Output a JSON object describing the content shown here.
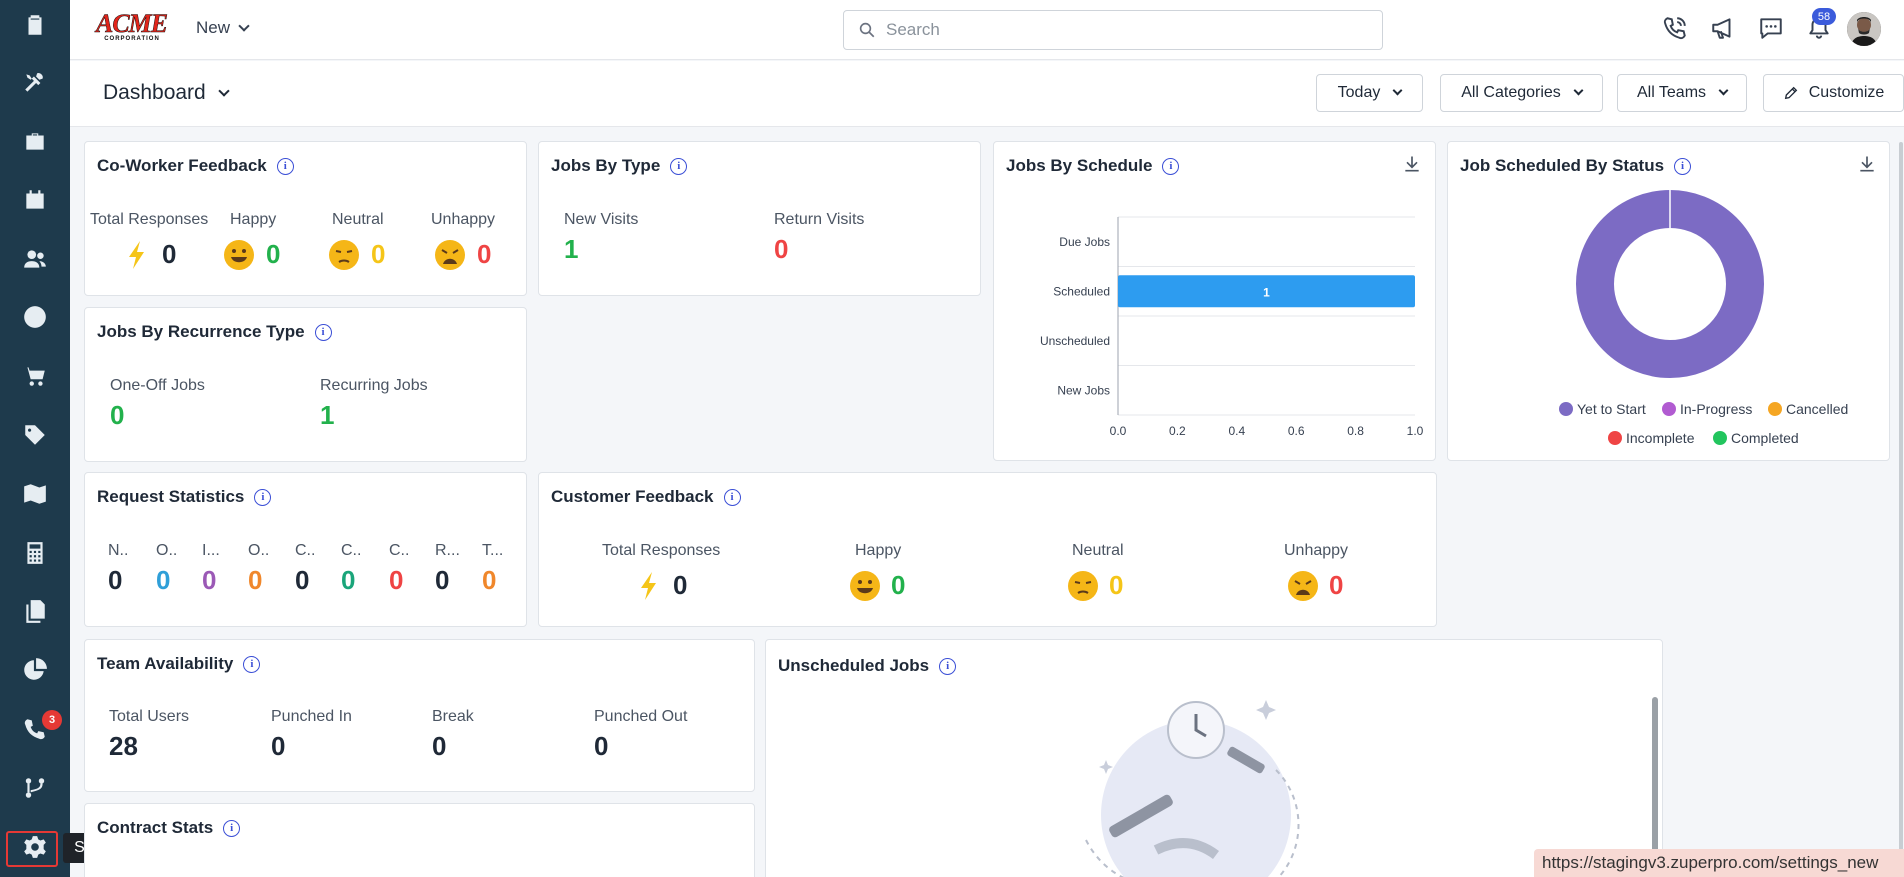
{
  "app": {
    "logo_text": "ACME",
    "logo_sub": "CORPORATION",
    "new_label": "New"
  },
  "search": {
    "placeholder": "Search"
  },
  "notifications": {
    "count": "58"
  },
  "sidebar": {
    "calls_badge": "3",
    "tooltip": "Settings",
    "items": [
      "clipboard-icon",
      "tools-icon",
      "briefcase-icon",
      "calendar-icon",
      "users-icon",
      "clock-icon",
      "cart-icon",
      "tag-icon",
      "map-icon",
      "calculator-icon",
      "documents-icon",
      "pie-chart-icon",
      "calls-icon",
      "flow-icon",
      "gear-icon"
    ]
  },
  "header": {
    "title": "Dashboard",
    "filter_date": "Today",
    "filter_category": "All Categories",
    "filter_team": "All Teams",
    "customize": "Customize"
  },
  "coworker_feedback": {
    "title": "Co-Worker Feedback",
    "total_label": "Total Responses",
    "total": "0",
    "happy_label": "Happy",
    "happy": "0",
    "neutral_label": "Neutral",
    "neutral": "0",
    "unhappy_label": "Unhappy",
    "unhappy": "0"
  },
  "jobs_by_type": {
    "title": "Jobs By Type",
    "new_label": "New Visits",
    "new": "1",
    "return_label": "Return Visits",
    "return": "0"
  },
  "jobs_by_recurrence": {
    "title": "Jobs By Recurrence Type",
    "oneoff_label": "One-Off Jobs",
    "oneoff": "0",
    "recurring_label": "Recurring Jobs",
    "recurring": "1"
  },
  "request_stats": {
    "title": "Request Statistics",
    "items": [
      {
        "label": "N..",
        "value": "0"
      },
      {
        "label": "O..",
        "value": "0"
      },
      {
        "label": "I...",
        "value": "0"
      },
      {
        "label": "O..",
        "value": "0"
      },
      {
        "label": "C..",
        "value": "0"
      },
      {
        "label": "C..",
        "value": "0"
      },
      {
        "label": "C..",
        "value": "0"
      },
      {
        "label": "R...",
        "value": "0"
      },
      {
        "label": "T...",
        "value": "0"
      }
    ]
  },
  "customer_feedback": {
    "title": "Customer Feedback",
    "total_label": "Total Responses",
    "total": "0",
    "happy_label": "Happy",
    "happy": "0",
    "neutral_label": "Neutral",
    "neutral": "0",
    "unhappy_label": "Unhappy",
    "unhappy": "0"
  },
  "team_availability": {
    "title": "Team Availability",
    "total_label": "Total Users",
    "total": "28",
    "punched_in_label": "Punched In",
    "punched_in": "0",
    "break_label": "Break",
    "break": "0",
    "punched_out_label": "Punched Out",
    "punched_out": "0"
  },
  "unscheduled_jobs": {
    "title": "Unscheduled Jobs"
  },
  "contract_stats": {
    "title": "Contract Stats"
  },
  "jobs_by_schedule": {
    "title": "Jobs By Schedule"
  },
  "job_status": {
    "title": "Job Scheduled By Status",
    "legend": [
      {
        "label": "Yet to Start",
        "color": "#7c6bc4"
      },
      {
        "label": "In-Progress",
        "color": "#b15bd1"
      },
      {
        "label": "Cancelled",
        "color": "#f5a623"
      },
      {
        "label": "Incomplete",
        "color": "#ef4444"
      },
      {
        "label": "Completed",
        "color": "#22c55e"
      }
    ]
  },
  "status_url": "https://stagingv3.zuperpro.com/settings_new",
  "chart_data": [
    {
      "type": "bar",
      "title": "Jobs By Schedule",
      "orientation": "horizontal",
      "categories": [
        "Due Jobs",
        "Scheduled",
        "Unscheduled",
        "New Jobs"
      ],
      "values": [
        0,
        1,
        0,
        0
      ],
      "xlim": [
        0,
        1.0
      ],
      "xticks": [
        "0.0",
        "0.2",
        "0.4",
        "0.6",
        "0.8",
        "1.0"
      ],
      "bar_color": "#2d9cf0",
      "grid": true
    },
    {
      "type": "pie",
      "title": "Job Scheduled By Status",
      "donut": true,
      "categories": [
        "Yet to Start",
        "In-Progress",
        "Cancelled",
        "Incomplete",
        "Completed"
      ],
      "values": [
        1,
        0,
        0,
        0,
        0
      ],
      "colors": [
        "#7c6bc4",
        "#b15bd1",
        "#f5a623",
        "#ef4444",
        "#22c55e"
      ],
      "legend": "bottom"
    }
  ]
}
